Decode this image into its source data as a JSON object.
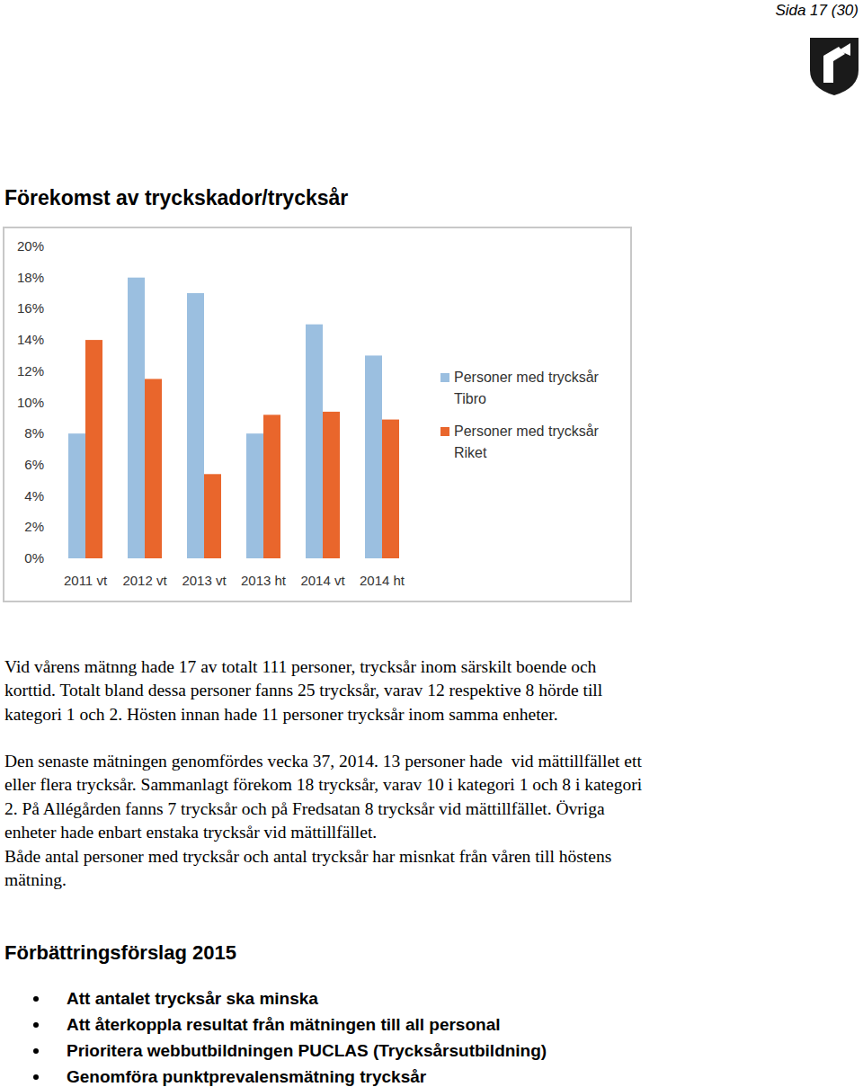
{
  "header": {
    "page": "Sida 17 (30)"
  },
  "chart_data": {
    "type": "bar",
    "title": "Förekomst av tryckskador/trycksår",
    "categories": [
      "2011 vt",
      "2012 vt",
      "2013 vt",
      "2013 ht",
      "2014 vt",
      "2014 ht"
    ],
    "series": [
      {
        "name": "Personer med trycksår Tibro",
        "color": "#9bbfe0",
        "values": [
          8,
          18,
          17,
          8,
          15,
          13
        ]
      },
      {
        "name": "Personer med trycksår Riket",
        "color": "#e9662c",
        "values": [
          14,
          11.5,
          5.4,
          9.2,
          9.4,
          8.9
        ]
      }
    ],
    "ylim": [
      0,
      20
    ],
    "yticks": [
      {
        "value": 0,
        "label": "0%"
      },
      {
        "value": 2,
        "label": "2%"
      },
      {
        "value": 4,
        "label": "4%"
      },
      {
        "value": 6,
        "label": "6%"
      },
      {
        "value": 8,
        "label": "8%"
      },
      {
        "value": 10,
        "label": "10%"
      },
      {
        "value": 12,
        "label": "12%"
      },
      {
        "value": 14,
        "label": "14%"
      },
      {
        "value": 16,
        "label": "16%"
      },
      {
        "value": 18,
        "label": "18%"
      },
      {
        "value": 20,
        "label": "20%"
      }
    ],
    "grid": false,
    "legend": "right"
  },
  "paragraphs": [
    {
      "lines": [
        "Vid vårens mätnng hade 17 av totalt 111 personer, trycksår inom särskilt boende och",
        "korttid. Totalt bland dessa personer fanns 25 trycksår, varav 12 respektive 8 hörde till",
        "kategori 1 och 2. Hösten innan hade 11 personer trycksår inom samma enheter."
      ]
    },
    {
      "lines": [
        "Den senaste mätningen genomfördes vecka 37, 2014. 13 personer hade  vid mättillfället ett",
        "eller flera trycksår. Sammanlagt förekom 18 trycksår, varav 10 i kategori 1 och 8 i kategori",
        "2. På Allégården fanns 7 trycksår och på Fredsatan 8 trycksår vid mättillfället. Övriga",
        "enheter hade enbart enstaka trycksår vid mättillfället.",
        "Både antal personer med trycksår och antal trycksår har misnkat från våren till höstens",
        "mätning."
      ]
    }
  ],
  "improvements": {
    "heading": "Förbättringsförslag 2015",
    "items": [
      "Att antalet trycksår ska minska",
      "Att återkoppla resultat från mätningen till all personal",
      "Prioritera webbutbildningen PUCLAS (Trycksårsutbildning)",
      "Genomföra punktprevalensmätning trycksår"
    ]
  }
}
